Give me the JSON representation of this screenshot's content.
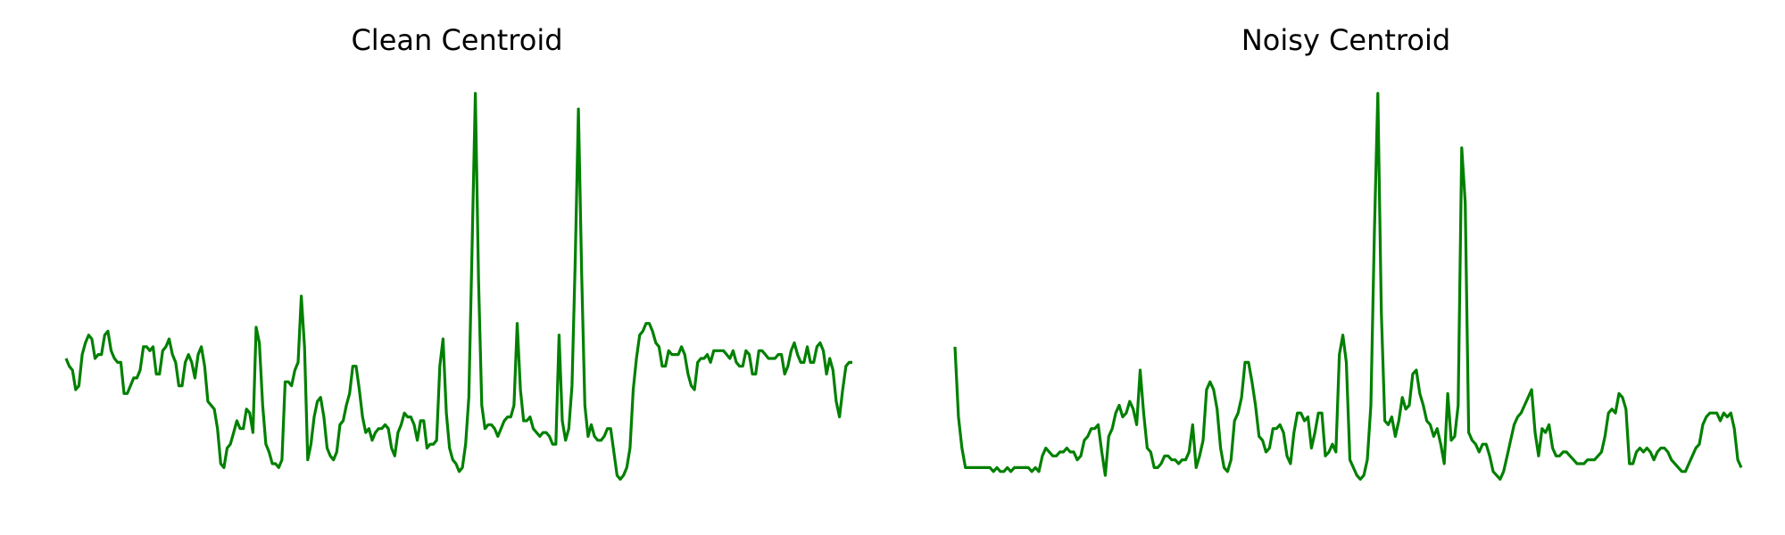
{
  "figure": {
    "background": "#ffffff",
    "line_color": "#008000"
  },
  "chart_data": [
    {
      "type": "line",
      "title": "Clean Centroid",
      "axes_visible": false,
      "grid": false,
      "legend": "none",
      "xlim": [
        0,
        240
      ],
      "ylim": [
        -0.05,
        1.0
      ],
      "series": [
        {
          "color": "#008000",
          "values": [
            0.3,
            0.28,
            0.27,
            0.22,
            0.23,
            0.31,
            0.34,
            0.36,
            0.35,
            0.3,
            0.31,
            0.31,
            0.36,
            0.37,
            0.32,
            0.3,
            0.29,
            0.29,
            0.21,
            0.21,
            0.23,
            0.25,
            0.25,
            0.27,
            0.33,
            0.33,
            0.32,
            0.33,
            0.26,
            0.26,
            0.32,
            0.33,
            0.35,
            0.31,
            0.29,
            0.23,
            0.23,
            0.29,
            0.31,
            0.29,
            0.25,
            0.31,
            0.33,
            0.28,
            0.19,
            0.18,
            0.17,
            0.12,
            0.03,
            0.02,
            0.07,
            0.08,
            0.11,
            0.14,
            0.12,
            0.12,
            0.17,
            0.16,
            0.11,
            0.38,
            0.34,
            0.18,
            0.08,
            0.06,
            0.03,
            0.03,
            0.02,
            0.04,
            0.24,
            0.24,
            0.23,
            0.27,
            0.29,
            0.46,
            0.33,
            0.04,
            0.08,
            0.15,
            0.19,
            0.2,
            0.15,
            0.07,
            0.05,
            0.04,
            0.06,
            0.13,
            0.14,
            0.18,
            0.21,
            0.28,
            0.28,
            0.22,
            0.15,
            0.11,
            0.12,
            0.09,
            0.11,
            0.12,
            0.12,
            0.13,
            0.12,
            0.07,
            0.05,
            0.11,
            0.13,
            0.16,
            0.15,
            0.15,
            0.13,
            0.09,
            0.14,
            0.14,
            0.07,
            0.08,
            0.08,
            0.09,
            0.28,
            0.35,
            0.16,
            0.07,
            0.04,
            0.03,
            0.01,
            0.02,
            0.08,
            0.2,
            0.58,
            0.98,
            0.5,
            0.18,
            0.12,
            0.13,
            0.13,
            0.12,
            0.1,
            0.12,
            0.14,
            0.15,
            0.15,
            0.18,
            0.39,
            0.22,
            0.14,
            0.14,
            0.15,
            0.12,
            0.11,
            0.1,
            0.11,
            0.11,
            0.1,
            0.08,
            0.08,
            0.36,
            0.14,
            0.09,
            0.12,
            0.23,
            0.55,
            0.94,
            0.52,
            0.18,
            0.1,
            0.13,
            0.1,
            0.09,
            0.09,
            0.1,
            0.12,
            0.12,
            0.06,
            0.0,
            -0.01,
            0.0,
            0.02,
            0.07,
            0.22,
            0.3,
            0.36,
            0.37,
            0.39,
            0.39,
            0.37,
            0.34,
            0.33,
            0.28,
            0.28,
            0.32,
            0.31,
            0.31,
            0.31,
            0.33,
            0.31,
            0.26,
            0.23,
            0.22,
            0.29,
            0.3,
            0.3,
            0.31,
            0.29,
            0.32,
            0.32,
            0.32,
            0.32,
            0.31,
            0.3,
            0.32,
            0.29,
            0.28,
            0.28,
            0.32,
            0.31,
            0.26,
            0.26,
            0.32,
            0.32,
            0.31,
            0.3,
            0.3,
            0.3,
            0.31,
            0.31,
            0.26,
            0.28,
            0.32,
            0.34,
            0.31,
            0.29,
            0.29,
            0.33,
            0.29,
            0.29,
            0.33,
            0.34,
            0.32,
            0.26,
            0.3,
            0.27,
            0.19,
            0.15,
            0.22,
            0.28,
            0.29,
            0.29
          ]
        }
      ]
    },
    {
      "type": "line",
      "title": "Noisy Centroid",
      "axes_visible": false,
      "grid": false,
      "legend": "none",
      "xlim": [
        0,
        240
      ],
      "ylim": [
        -0.05,
        1.0
      ],
      "series": [
        {
          "color": "#008000",
          "values": [
            0.33,
            0.15,
            0.07,
            0.02,
            0.02,
            0.02,
            0.02,
            0.02,
            0.02,
            0.02,
            0.02,
            0.01,
            0.02,
            0.01,
            0.01,
            0.02,
            0.01,
            0.02,
            0.02,
            0.02,
            0.02,
            0.02,
            0.01,
            0.02,
            0.01,
            0.05,
            0.07,
            0.06,
            0.05,
            0.05,
            0.06,
            0.06,
            0.07,
            0.06,
            0.06,
            0.04,
            0.05,
            0.09,
            0.1,
            0.12,
            0.12,
            0.13,
            0.06,
            0.0,
            0.1,
            0.12,
            0.16,
            0.18,
            0.15,
            0.16,
            0.19,
            0.17,
            0.13,
            0.27,
            0.16,
            0.07,
            0.06,
            0.02,
            0.02,
            0.03,
            0.05,
            0.05,
            0.04,
            0.04,
            0.03,
            0.04,
            0.04,
            0.06,
            0.13,
            0.02,
            0.05,
            0.09,
            0.22,
            0.24,
            0.22,
            0.17,
            0.07,
            0.02,
            0.01,
            0.04,
            0.14,
            0.16,
            0.2,
            0.29,
            0.29,
            0.24,
            0.18,
            0.1,
            0.09,
            0.06,
            0.07,
            0.12,
            0.12,
            0.13,
            0.11,
            0.05,
            0.03,
            0.11,
            0.16,
            0.16,
            0.14,
            0.15,
            0.07,
            0.11,
            0.16,
            0.16,
            0.05,
            0.06,
            0.08,
            0.06,
            0.31,
            0.36,
            0.29,
            0.04,
            0.02,
            0.0,
            -0.01,
            0.0,
            0.04,
            0.18,
            0.62,
            0.98,
            0.42,
            0.14,
            0.13,
            0.15,
            0.1,
            0.14,
            0.2,
            0.17,
            0.18,
            0.26,
            0.27,
            0.21,
            0.18,
            0.14,
            0.13,
            0.1,
            0.12,
            0.08,
            0.03,
            0.21,
            0.09,
            0.1,
            0.18,
            0.84,
            0.7,
            0.11,
            0.09,
            0.08,
            0.06,
            0.08,
            0.08,
            0.05,
            0.01,
            0.0,
            -0.01,
            0.01,
            0.05,
            0.09,
            0.13,
            0.15,
            0.16,
            0.18,
            0.2,
            0.22,
            0.11,
            0.05,
            0.12,
            0.11,
            0.13,
            0.07,
            0.05,
            0.05,
            0.06,
            0.06,
            0.05,
            0.04,
            0.03,
            0.03,
            0.03,
            0.04,
            0.04,
            0.04,
            0.05,
            0.06,
            0.1,
            0.16,
            0.17,
            0.16,
            0.21,
            0.2,
            0.17,
            0.03,
            0.03,
            0.06,
            0.07,
            0.06,
            0.07,
            0.06,
            0.04,
            0.06,
            0.07,
            0.07,
            0.06,
            0.04,
            0.03,
            0.02,
            0.01,
            0.01,
            0.03,
            0.05,
            0.07,
            0.08,
            0.13,
            0.15,
            0.16,
            0.16,
            0.16,
            0.14,
            0.16,
            0.15,
            0.16,
            0.12,
            0.04,
            0.02
          ]
        }
      ]
    }
  ]
}
